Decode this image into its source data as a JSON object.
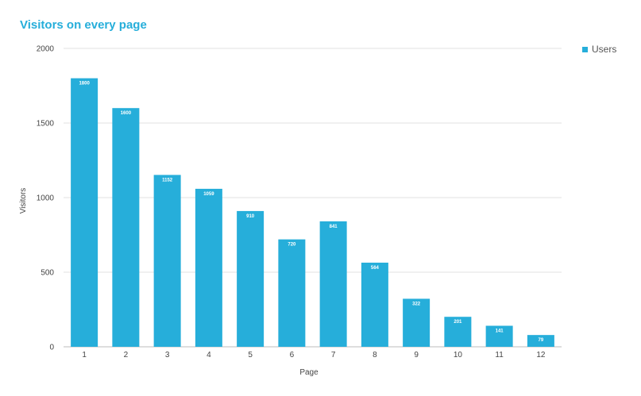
{
  "colors": {
    "bar": "#26AEDA",
    "title": "#26AEDA",
    "grid": "#E0E0E0",
    "axis_text": "#444444",
    "data_label": "#FFFFFF"
  },
  "legend": {
    "label": "Users"
  },
  "chart_data": {
    "type": "bar",
    "title": "Visitors on every page",
    "xlabel": "Page",
    "ylabel": "Visitors",
    "categories": [
      "1",
      "2",
      "3",
      "4",
      "5",
      "6",
      "7",
      "8",
      "9",
      "10",
      "11",
      "12"
    ],
    "series": [
      {
        "name": "Users",
        "values": [
          1800,
          1600,
          1152,
          1059,
          910,
          720,
          841,
          564,
          322,
          201,
          141,
          79
        ],
        "labels": [
          "1800",
          "1600",
          "1152",
          "1059",
          "910",
          "720",
          "841",
          "564",
          "322",
          "201",
          "141",
          "79"
        ]
      }
    ],
    "ylim": [
      0,
      2000
    ],
    "yticks": [
      "0",
      "500",
      "1000",
      "1500",
      "2000"
    ],
    "ytick_values": [
      0,
      500,
      1000,
      1500,
      2000
    ],
    "grid": true,
    "legend_position": "top-right"
  }
}
